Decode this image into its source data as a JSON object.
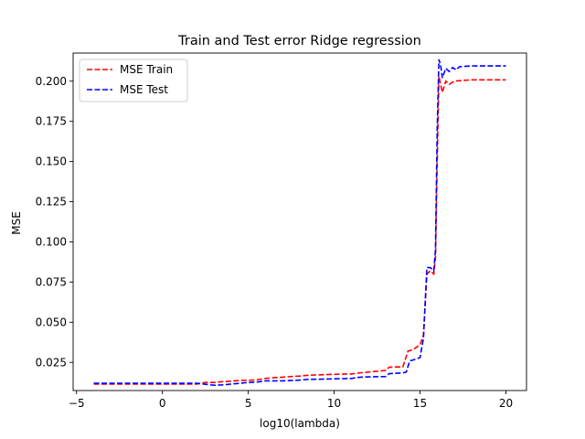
{
  "chart_data": {
    "type": "line",
    "title": "Train and Test error Ridge regression",
    "xlabel": "log10(lambda)",
    "ylabel": "MSE",
    "xlim": [
      -5.2,
      21.2
    ],
    "ylim": [
      0.0075,
      0.2175
    ],
    "xticks": [
      -5,
      0,
      5,
      10,
      15,
      20
    ],
    "yticks": [
      0.025,
      0.05,
      0.075,
      0.1,
      0.125,
      0.15,
      0.175,
      0.2
    ],
    "xtick_labels": [
      "−5",
      "0",
      "5",
      "10",
      "15",
      "20"
    ],
    "ytick_labels": [
      "0.025",
      "0.050",
      "0.075",
      "0.100",
      "0.125",
      "0.150",
      "0.175",
      "0.200"
    ],
    "grid": false,
    "legend_position": "top-left",
    "series": [
      {
        "name": "MSE Train",
        "color": "#ff0000",
        "style": "dashed",
        "points": [
          [
            -4,
            0.0115
          ],
          [
            0,
            0.0115
          ],
          [
            2,
            0.0115
          ],
          [
            2.5,
            0.0125
          ],
          [
            3,
            0.0125
          ],
          [
            3.5,
            0.013
          ],
          [
            4,
            0.0133
          ],
          [
            4.5,
            0.0138
          ],
          [
            5,
            0.0138
          ],
          [
            5.5,
            0.0142
          ],
          [
            6,
            0.015
          ],
          [
            6.5,
            0.0155
          ],
          [
            7,
            0.0158
          ],
          [
            7.5,
            0.0162
          ],
          [
            8,
            0.0165
          ],
          [
            8.5,
            0.017
          ],
          [
            9,
            0.0172
          ],
          [
            10,
            0.0176
          ],
          [
            11,
            0.0178
          ],
          [
            11.5,
            0.0185
          ],
          [
            12,
            0.019
          ],
          [
            12.5,
            0.0195
          ],
          [
            13,
            0.02
          ],
          [
            13.2,
            0.022
          ],
          [
            13.5,
            0.0222
          ],
          [
            14,
            0.0222
          ],
          [
            14.3,
            0.032
          ],
          [
            14.6,
            0.033
          ],
          [
            15,
            0.036
          ],
          [
            15.2,
            0.042
          ],
          [
            15.4,
            0.08
          ],
          [
            15.6,
            0.082
          ],
          [
            15.8,
            0.08
          ],
          [
            15.9,
            0.09
          ],
          [
            16.0,
            0.15
          ],
          [
            16.1,
            0.203
          ],
          [
            16.2,
            0.198
          ],
          [
            16.3,
            0.193
          ],
          [
            16.5,
            0.2
          ],
          [
            16.7,
            0.198
          ],
          [
            17,
            0.2
          ],
          [
            17.5,
            0.2005
          ],
          [
            18,
            0.2008
          ],
          [
            20,
            0.2008
          ]
        ]
      },
      {
        "name": "MSE Test",
        "color": "#0000ff",
        "style": "dashed",
        "points": [
          [
            -4,
            0.012
          ],
          [
            0,
            0.012
          ],
          [
            2,
            0.012
          ],
          [
            3,
            0.0108
          ],
          [
            3.5,
            0.011
          ],
          [
            4,
            0.0115
          ],
          [
            4.5,
            0.012
          ],
          [
            5,
            0.0125
          ],
          [
            5.5,
            0.0128
          ],
          [
            6,
            0.0135
          ],
          [
            7,
            0.0135
          ],
          [
            8,
            0.014
          ],
          [
            8.5,
            0.0145
          ],
          [
            9,
            0.0145
          ],
          [
            10,
            0.0148
          ],
          [
            11,
            0.015
          ],
          [
            11.5,
            0.0158
          ],
          [
            12,
            0.016
          ],
          [
            13,
            0.0162
          ],
          [
            13.2,
            0.018
          ],
          [
            14,
            0.0185
          ],
          [
            14.2,
            0.019
          ],
          [
            14.4,
            0.026
          ],
          [
            14.6,
            0.0265
          ],
          [
            15,
            0.028
          ],
          [
            15.2,
            0.04
          ],
          [
            15.4,
            0.084
          ],
          [
            15.6,
            0.084
          ],
          [
            15.8,
            0.082
          ],
          [
            15.9,
            0.095
          ],
          [
            16.0,
            0.17
          ],
          [
            16.1,
            0.2135
          ],
          [
            16.2,
            0.21
          ],
          [
            16.3,
            0.202
          ],
          [
            16.5,
            0.208
          ],
          [
            16.7,
            0.206
          ],
          [
            16.9,
            0.2085
          ],
          [
            17.1,
            0.207
          ],
          [
            17.3,
            0.209
          ],
          [
            18,
            0.2095
          ],
          [
            20,
            0.2095
          ]
        ]
      }
    ]
  }
}
